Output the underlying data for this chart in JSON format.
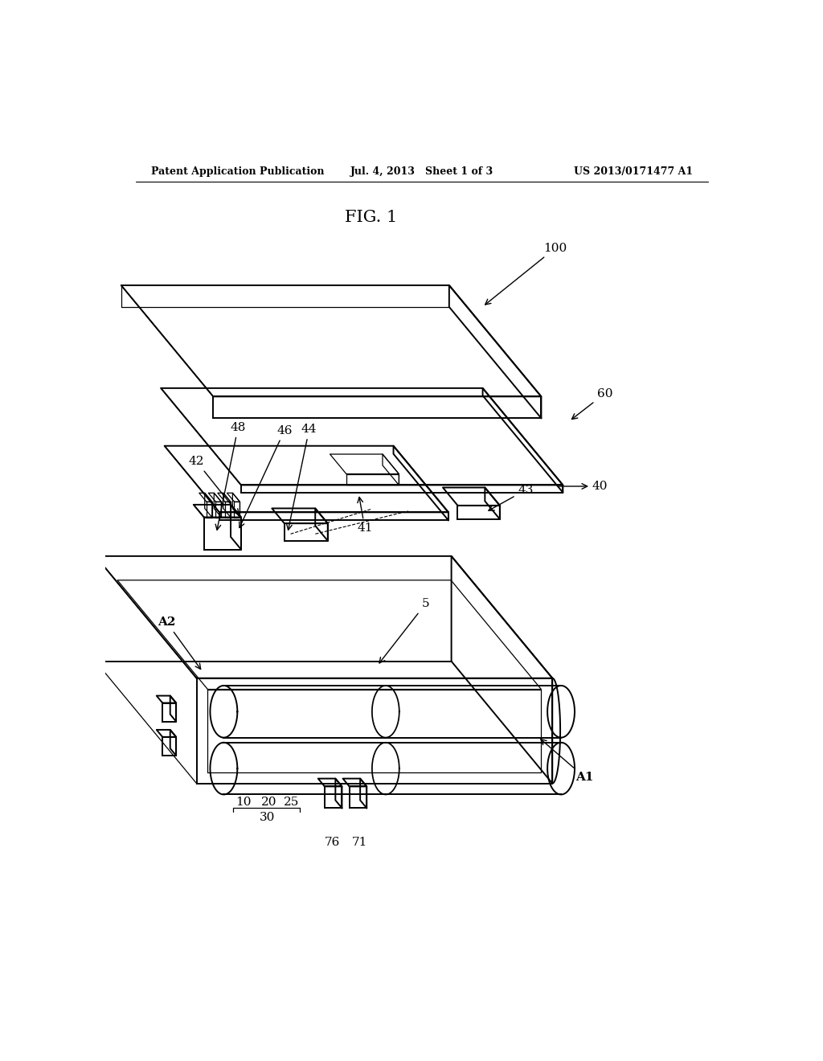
{
  "background_color": "#ffffff",
  "header_left": "Patent Application Publication",
  "header_center": "Jul. 4, 2013   Sheet 1 of 3",
  "header_right": "US 2013/0171477 A1",
  "fig_label": "FIG. 1",
  "line_color": "#000000",
  "lw_main": 1.4,
  "lw_thin": 0.9,
  "label_fontsize": 11,
  "header_fontsize": 9,
  "fig_fontsize": 15
}
